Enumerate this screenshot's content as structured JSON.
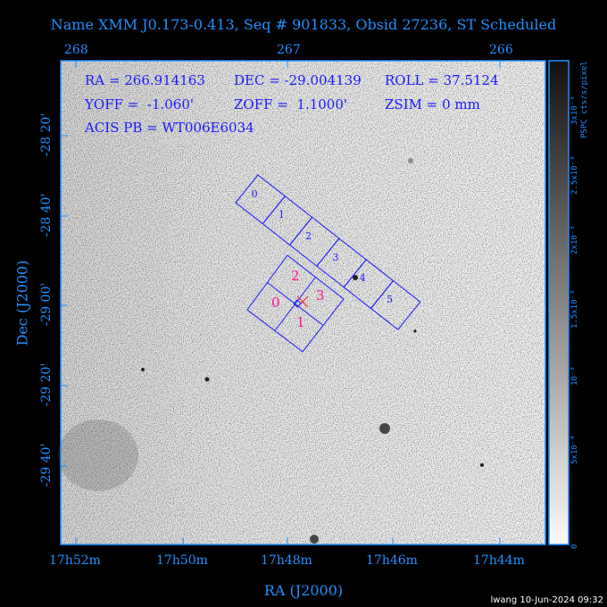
{
  "title": "Name XMM J0.173-0.413, Seq # 901833, Obsid 27236, ST Scheduled",
  "info": {
    "ra": "RA = 266.914163",
    "dec": "DEC = -29.004139",
    "roll": "ROLL = 37.5124",
    "yoff": "YOFF =  -1.060'",
    "zoff": "ZOFF =  1.1000'",
    "zsim": "ZSIM = 0 mm",
    "acis_pb": "ACIS PB = WT006E6034"
  },
  "top_axis": [
    "268",
    "267",
    "266"
  ],
  "bottom_axis": [
    "17h52m",
    "17h50m",
    "17h48m",
    "17h46m",
    "17h44m"
  ],
  "left_axis": [
    "-28 20'",
    "-28 40'",
    "-29 00'",
    "-29 20'",
    "-29 40'"
  ],
  "xlabel": "RA (J2000)",
  "ylabel": "Dec (J2000)",
  "colorbar": {
    "label": "PSPC cts/s/pixel",
    "ticks": [
      "0",
      "5x10⁻⁴",
      "10⁻³",
      "1.5x10⁻³",
      "2x10⁻³",
      "2.5x10⁻³",
      "3x10⁻³"
    ]
  },
  "acis_s_chips": [
    "0",
    "1",
    "2",
    "3",
    "4",
    "5"
  ],
  "acis_i_chips": [
    "0",
    "1",
    "2",
    "3"
  ],
  "colors": {
    "axis": "#1e90ff",
    "chips": "#1a1aff",
    "acis_i_labels": "#ff1493",
    "aimpoint": "#ff2020"
  },
  "footer": "lwang 10-Jun-2024 09:32"
}
